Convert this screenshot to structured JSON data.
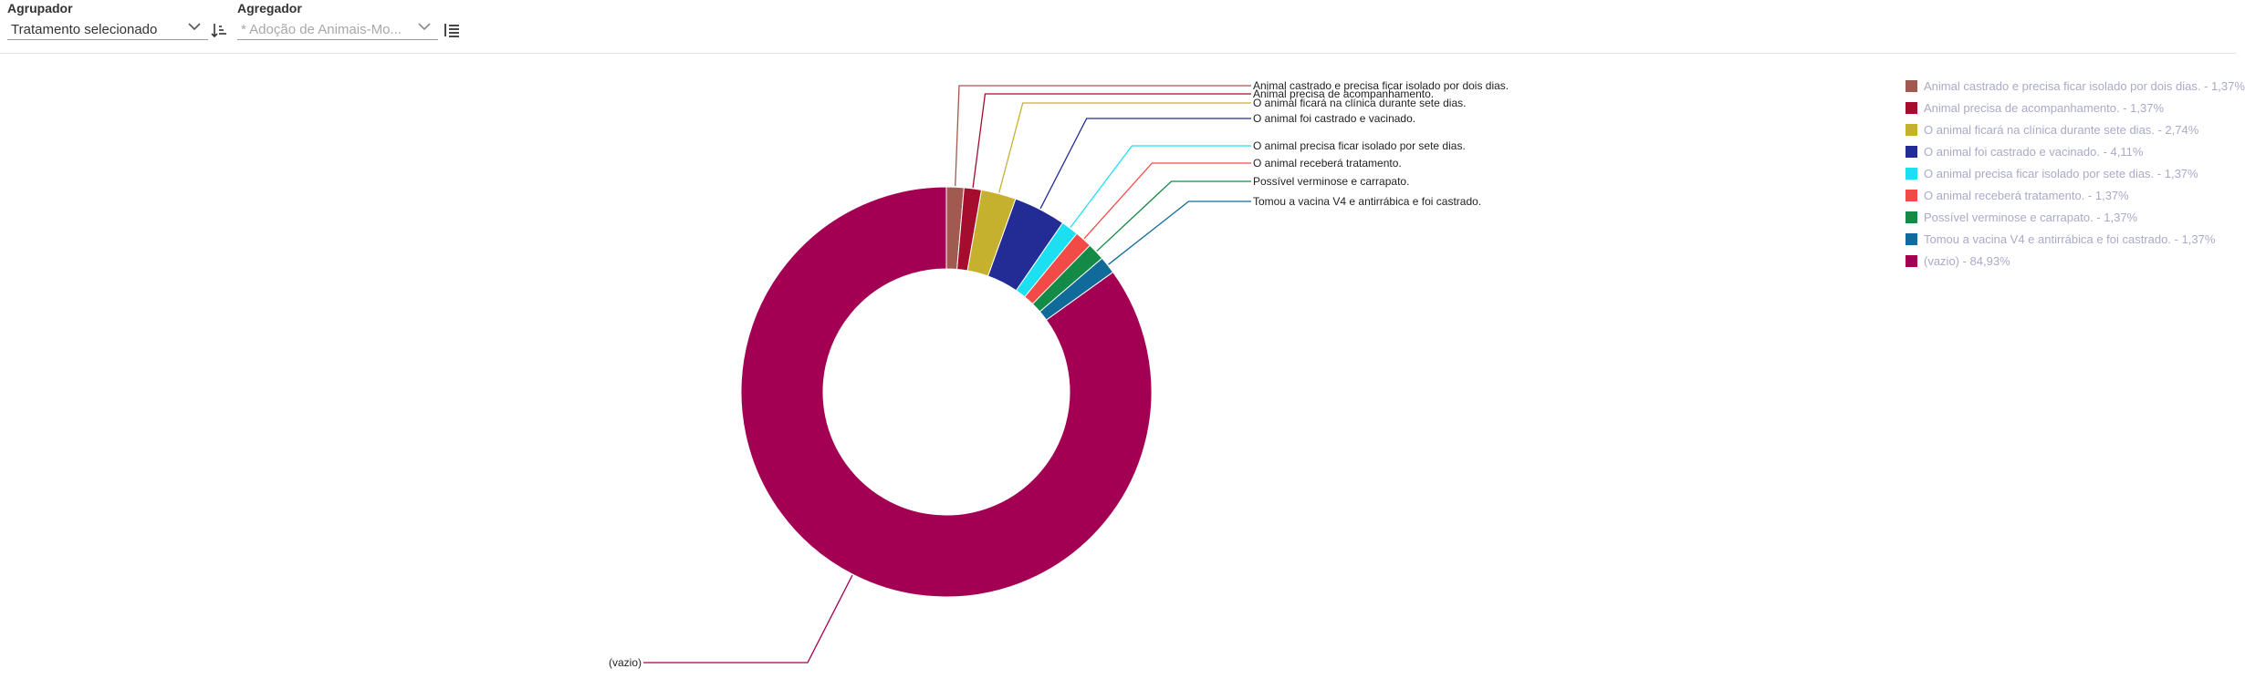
{
  "toolbar": {
    "grouper": {
      "label": "Agrupador",
      "value": "Tratamento selecionado",
      "chevron_icon": "chevron-down-icon",
      "sort_icon": "sort-ascending-icon"
    },
    "aggregator": {
      "label": "Agregador",
      "value": "* Adoção de Animais-Mo...",
      "chevron_icon": "chevron-down-icon",
      "sort_icon": "sort-list-icon"
    }
  },
  "chart_data": {
    "type": "pie",
    "style": "donut",
    "title": "",
    "legend_position": "right",
    "slices": [
      {
        "label": "Animal castrado e precisa ficar isolado por dois dias.",
        "value": 1.37,
        "color": "#a05a50",
        "legend": "Animal castrado e precisa ficar isolado por dois dias. - 1,37%"
      },
      {
        "label": "Animal precisa de acompanhamento.",
        "value": 1.37,
        "color": "#a50d2e",
        "legend": "Animal precisa de acompanhamento. - 1,37%"
      },
      {
        "label": "O animal ficará na clínica durante sete dias.",
        "value": 2.74,
        "color": "#c6b12f",
        "legend": "O animal ficará na clínica durante sete dias. - 2,74%"
      },
      {
        "label": "O animal foi castrado e vacinado.",
        "value": 4.11,
        "color": "#232b95",
        "legend": "O animal foi castrado e vacinado. - 4,11%"
      },
      {
        "label": "O animal precisa ficar isolado por sete dias.",
        "value": 1.37,
        "color": "#1ce0f2",
        "legend": "O animal precisa ficar isolado por sete dias. - 1,37%"
      },
      {
        "label": "O animal receberá tratamento.",
        "value": 1.37,
        "color": "#f24b47",
        "legend": "O animal receberá tratamento. - 1,37%"
      },
      {
        "label": "Possível verminose e carrapato.",
        "value": 1.37,
        "color": "#138a45",
        "legend": "Possível verminose e carrapato. - 1,37%"
      },
      {
        "label": "Tomou a vacina V4 e antirrábica e foi castrado.",
        "value": 1.37,
        "color": "#106b9b",
        "legend": "Tomou a vacina V4 e antirrábica e foi castrado. - 1,37%"
      },
      {
        "label": "(vazio)",
        "value": 84.93,
        "color": "#a30054",
        "legend": "(vazio) - 84,93%"
      }
    ]
  }
}
